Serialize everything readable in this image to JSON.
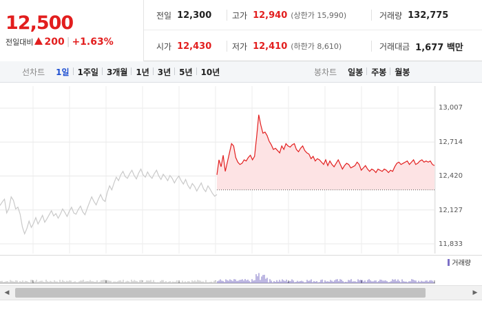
{
  "quote": {
    "price": "12,500",
    "change_label": "전일대비",
    "change": "200",
    "change_pct": "+1.63%"
  },
  "stats": {
    "prev_close": {
      "label": "전일",
      "value": "12,300"
    },
    "high": {
      "label": "고가",
      "value": "12,940",
      "extra": "(상한가 15,990)"
    },
    "volume": {
      "label": "거래량",
      "value": "132,775"
    },
    "open": {
      "label": "시가",
      "value": "12,430"
    },
    "low": {
      "label": "저가",
      "value": "12,410",
      "extra": "(하한가 8,610)"
    },
    "trade_value": {
      "label": "거래대금",
      "value": "1,677 백만"
    }
  },
  "toolbar": {
    "line_title": "선차트",
    "line_periods": [
      "1일",
      "1주일",
      "3개월",
      "1년",
      "3년",
      "5년",
      "10년"
    ],
    "active_period": "1일",
    "candle_title": "봉차트",
    "candle_periods": [
      "일봉",
      "주봉",
      "월봉"
    ]
  },
  "colors": {
    "up": "#e21e1e",
    "prev_day_line": "#c9c9c9",
    "fill": "#fde3e4",
    "volume_bar": "#7b6fc6",
    "active_tab": "#1e4fd1"
  },
  "volume_legend": "거래량",
  "chart_data": {
    "type": "line",
    "y_ticks": [
      "13,007",
      "12,714",
      "12,420",
      "12,127",
      "11,833"
    ],
    "ylim": [
      11833,
      13007
    ],
    "baseline": 12300,
    "grid": true,
    "series": [
      {
        "values": [
          12165,
          12195,
          12220,
          12100,
          12140,
          12240,
          12210,
          12135,
          12150,
          12090,
          11980,
          11920,
          11965,
          12030,
          11975,
          12010,
          12060,
          12005,
          12040,
          12080,
          12020,
          12050,
          12085,
          12120,
          12075,
          12095,
          12055,
          12090,
          12135,
          12105,
          12070,
          12115,
          12150,
          12100,
          12090,
          12130,
          12160,
          12110,
          12085,
          12140,
          12190,
          12240,
          12200,
          12170,
          12220,
          12260,
          12215,
          12200,
          12280,
          12335,
          12300,
          12360,
          12410,
          12380,
          12430,
          12460,
          12415,
          12400,
          12440,
          12470,
          12425,
          12395,
          12445,
          12480,
          12430,
          12410,
          12455,
          12420,
          12400,
          12440,
          12470,
          12420,
          12390,
          12435,
          12410,
          12380,
          12425,
          12400,
          12360,
          12395,
          12420,
          12380,
          12350,
          12390,
          12340,
          12310,
          12355,
          12330,
          12290,
          12325,
          12360,
          12310,
          12285,
          12335,
          12305,
          12270,
          12245,
          12260
        ]
      },
      {
        "values": [
          12430,
          12560,
          12500,
          12600,
          12460,
          12540,
          12620,
          12700,
          12680,
          12580,
          12540,
          12520,
          12530,
          12560,
          12550,
          12580,
          12600,
          12560,
          12590,
          12760,
          12950,
          12860,
          12790,
          12800,
          12770,
          12720,
          12690,
          12650,
          12660,
          12640,
          12620,
          12680,
          12650,
          12700,
          12680,
          12670,
          12690,
          12700,
          12650,
          12630,
          12660,
          12680,
          12640,
          12620,
          12610,
          12570,
          12590,
          12550,
          12570,
          12560,
          12540,
          12520,
          12560,
          12510,
          12550,
          12520,
          12500,
          12530,
          12560,
          12520,
          12480,
          12510,
          12530,
          12520,
          12490,
          12500,
          12510,
          12540,
          12520,
          12470,
          12490,
          12510,
          12480,
          12460,
          12480,
          12470,
          12450,
          12480,
          12470,
          12460,
          12480,
          12470,
          12450,
          12470,
          12460,
          12500,
          12530,
          12540,
          12520,
          12530,
          12540,
          12550,
          12520,
          12540,
          12560,
          12520,
          12530,
          12550,
          12560,
          12540,
          12550,
          12540,
          12550,
          12520,
          12510
        ]
      }
    ]
  }
}
